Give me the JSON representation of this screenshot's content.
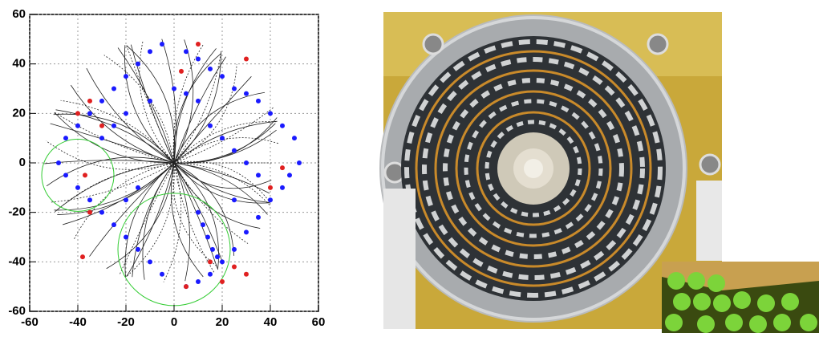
{
  "chart_data": {
    "type": "scatter",
    "xlim": [
      -60,
      60
    ],
    "ylim": [
      -60,
      60
    ],
    "xticks": [
      -60,
      -40,
      -20,
      0,
      20,
      40,
      60
    ],
    "yticks": [
      -60,
      -40,
      -20,
      0,
      20,
      40,
      60
    ],
    "grid": true,
    "series": [
      {
        "color": "#1a1aff",
        "x": [
          -45,
          -40,
          -35,
          -30,
          -25,
          -20,
          -15,
          -10,
          -5,
          5,
          10,
          15,
          20,
          25,
          30,
          35,
          40,
          45,
          50,
          52,
          48,
          45,
          40,
          35,
          30,
          25,
          20,
          15,
          10,
          5,
          -5,
          -10,
          -15,
          -20,
          -25,
          -30,
          -35,
          -40,
          -45,
          -48,
          10,
          12,
          14,
          16,
          18,
          20,
          25,
          30,
          35,
          -20,
          -25,
          -30,
          0,
          5,
          10,
          -10,
          15,
          -15,
          -20,
          25
        ],
        "y": [
          10,
          15,
          20,
          25,
          30,
          35,
          40,
          45,
          48,
          45,
          42,
          38,
          35,
          30,
          28,
          25,
          20,
          15,
          10,
          0,
          -5,
          -10,
          -15,
          -22,
          -28,
          -35,
          -40,
          -45,
          -48,
          -50,
          -45,
          -40,
          -35,
          -30,
          -25,
          -20,
          -15,
          -10,
          -5,
          0,
          -20,
          -25,
          -30,
          -35,
          -38,
          10,
          5,
          0,
          -5,
          20,
          15,
          10,
          30,
          28,
          25,
          25,
          15,
          -10,
          -15,
          -15
        ]
      },
      {
        "color": "#e02020",
        "x": [
          -40,
          -35,
          -30,
          -37,
          -35,
          -38,
          3,
          10,
          30,
          45,
          40,
          5,
          15,
          25,
          30,
          20
        ],
        "y": [
          20,
          25,
          15,
          -5,
          -20,
          -38,
          37,
          48,
          42,
          -2,
          -10,
          -50,
          -40,
          -42,
          -45,
          -48
        ]
      }
    ]
  }
}
